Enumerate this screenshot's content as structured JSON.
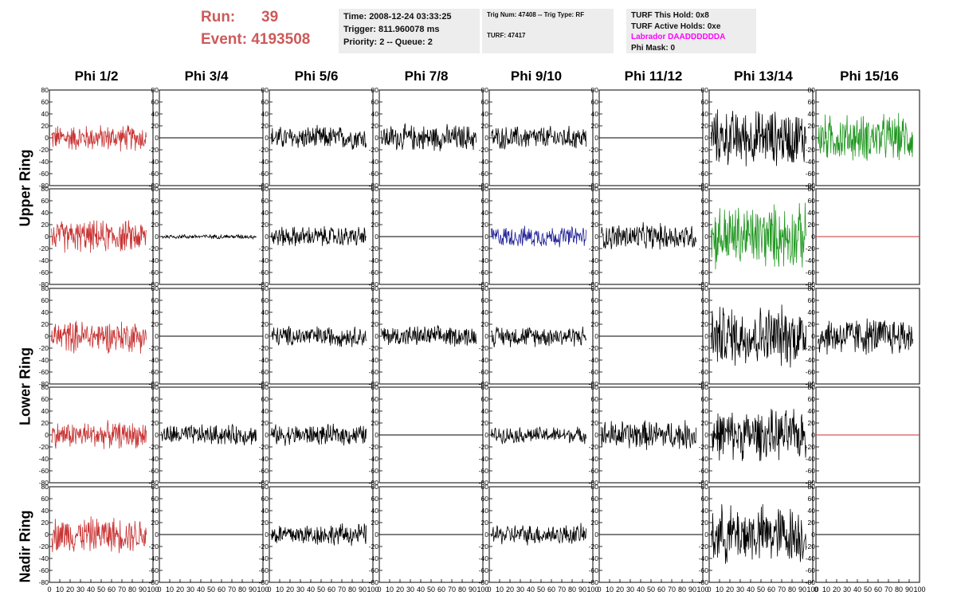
{
  "header": {
    "run_label": "Run:",
    "run_value": "39",
    "event_label": "Event:",
    "event_value": "4193508"
  },
  "info_box_1": {
    "time": "Time: 2008-12-24 03:33:25",
    "trigger": "Trigger: 811.960078 ms",
    "priority": "Priority: 2 -- Queue: 2"
  },
  "info_box_2": {
    "trig_num": "Trig Num: 47408 -- Trig Type: RF",
    "turf": "TURF: 47417"
  },
  "info_box_3": {
    "turf_hold": "TURF This Hold: 0x8",
    "turf_active": "TURF Active Holds: 0xe",
    "labrador": "Labrador DAADDDDDDA",
    "phi_mask": "Phi Mask: 0"
  },
  "columns": [
    "Phi 1/2",
    "Phi 3/4",
    "Phi 5/6",
    "Phi 7/8",
    "Phi 9/10",
    "Phi 11/12",
    "Phi 13/14",
    "Phi 15/16"
  ],
  "ring_labels": [
    "Upper Ring",
    "Lower Ring",
    "Nadir Ring"
  ],
  "chart_data": {
    "type": "line",
    "description_rows": [
      "upper-1",
      "upper-2",
      "lower-1",
      "lower-2",
      "nadir"
    ],
    "xlim": [
      0,
      100
    ],
    "ylim": [
      -80,
      80
    ],
    "x_ticks": [
      0,
      10,
      20,
      30,
      40,
      50,
      60,
      70,
      80,
      90,
      100
    ],
    "y_ticks": [
      -80,
      -60,
      -40,
      -20,
      0,
      20,
      40,
      60,
      80
    ],
    "colors": {
      "black": "#000000",
      "red": "#c83232",
      "green": "#1e961e",
      "blue": "#1e1e96",
      "flat_red": "#c83232"
    },
    "panels": [
      [
        {
          "color": "red",
          "amp": 18,
          "flat": false
        },
        {
          "color": "black",
          "amp": 0,
          "flat": true
        },
        {
          "color": "black",
          "amp": 16,
          "flat": false
        },
        {
          "color": "black",
          "amp": 18,
          "flat": false
        },
        {
          "color": "black",
          "amp": 16,
          "flat": false
        },
        {
          "color": "black",
          "amp": 0,
          "flat": true
        },
        {
          "color": "black",
          "amp": 38,
          "flat": false
        },
        {
          "color": "green",
          "amp": 32,
          "flat": false
        }
      ],
      [
        {
          "color": "red",
          "amp": 22,
          "flat": false
        },
        {
          "color": "black",
          "amp": 3,
          "flat": false
        },
        {
          "color": "black",
          "amp": 14,
          "flat": false
        },
        {
          "color": "black",
          "amp": 0,
          "flat": true
        },
        {
          "color": "blue",
          "amp": 14,
          "flat": false
        },
        {
          "color": "black",
          "amp": 18,
          "flat": false
        },
        {
          "color": "green",
          "amp": 44,
          "flat": false
        },
        {
          "color": "flat_red",
          "amp": 0,
          "flat": true
        }
      ],
      [
        {
          "color": "red",
          "amp": 22,
          "flat": false
        },
        {
          "color": "black",
          "amp": 0,
          "flat": true
        },
        {
          "color": "black",
          "amp": 14,
          "flat": false
        },
        {
          "color": "black",
          "amp": 14,
          "flat": false
        },
        {
          "color": "black",
          "amp": 14,
          "flat": false
        },
        {
          "color": "black",
          "amp": 0,
          "flat": true
        },
        {
          "color": "black",
          "amp": 42,
          "flat": false
        },
        {
          "color": "black",
          "amp": 26,
          "flat": false
        }
      ],
      [
        {
          "color": "red",
          "amp": 18,
          "flat": false
        },
        {
          "color": "black",
          "amp": 14,
          "flat": false
        },
        {
          "color": "black",
          "amp": 14,
          "flat": false
        },
        {
          "color": "black",
          "amp": 0,
          "flat": true
        },
        {
          "color": "black",
          "amp": 11,
          "flat": false
        },
        {
          "color": "black",
          "amp": 20,
          "flat": false
        },
        {
          "color": "black",
          "amp": 34,
          "flat": false
        },
        {
          "color": "flat_red",
          "amp": 0,
          "flat": true
        }
      ],
      [
        {
          "color": "red",
          "amp": 24,
          "flat": false
        },
        {
          "color": "black",
          "amp": 0,
          "flat": true
        },
        {
          "color": "black",
          "amp": 15,
          "flat": false
        },
        {
          "color": "black",
          "amp": 0,
          "flat": true
        },
        {
          "color": "black",
          "amp": 14,
          "flat": false
        },
        {
          "color": "black",
          "amp": 0,
          "flat": true
        },
        {
          "color": "black",
          "amp": 40,
          "flat": false
        },
        {
          "color": "black",
          "amp": 0,
          "flat": true
        }
      ]
    ]
  }
}
